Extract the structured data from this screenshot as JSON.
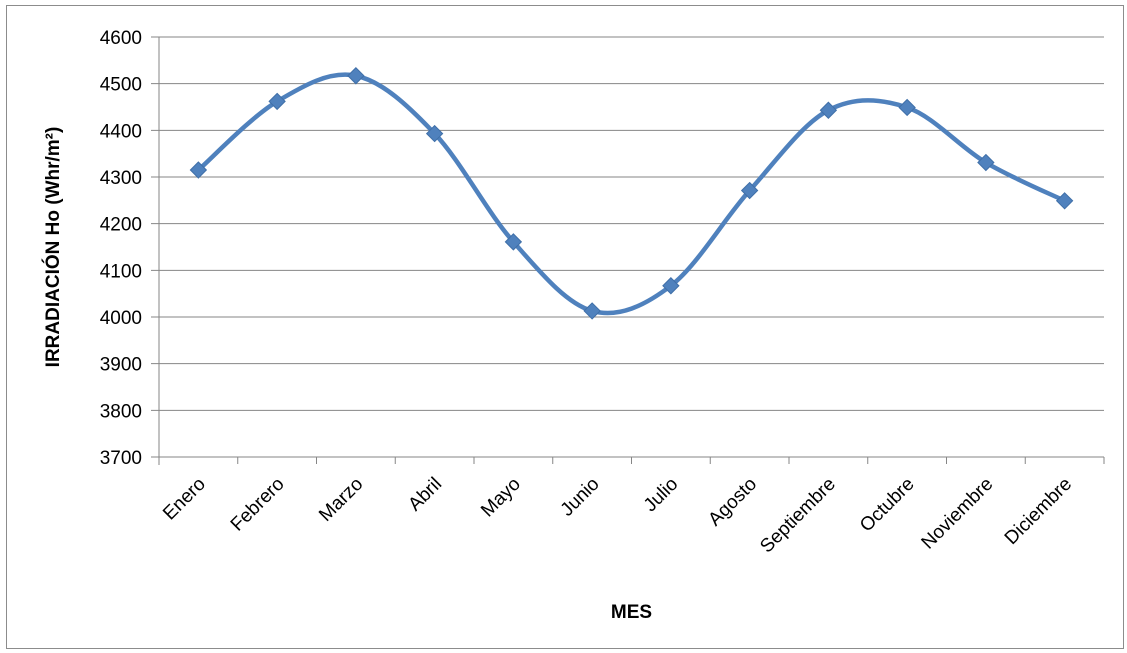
{
  "chart_data": {
    "type": "line",
    "smooth": true,
    "title": "",
    "xlabel": "MES",
    "ylabel": "IRRADIACIÓN Ho (Whr/m²)",
    "categories": [
      "Enero",
      "Febrero",
      "Marzo",
      "Abril",
      "Mayo",
      "Junio",
      "Julio",
      "Agosto",
      "Septiembre",
      "Octubre",
      "Noviembre",
      "Diciembre"
    ],
    "series": [
      {
        "values": [
          4315,
          4462,
          4517,
          4393,
          4161,
          4013,
          4067,
          4271,
          4443,
          4449,
          4331,
          4249
        ],
        "color": "#4F81BD",
        "marker": "diamond"
      }
    ],
    "ylim": [
      3700,
      4600
    ],
    "yticks": [
      3700,
      3800,
      3900,
      4000,
      4100,
      4200,
      4300,
      4400,
      4500,
      4600
    ],
    "grid": true,
    "legend": "none",
    "grid_color": "#868686"
  }
}
